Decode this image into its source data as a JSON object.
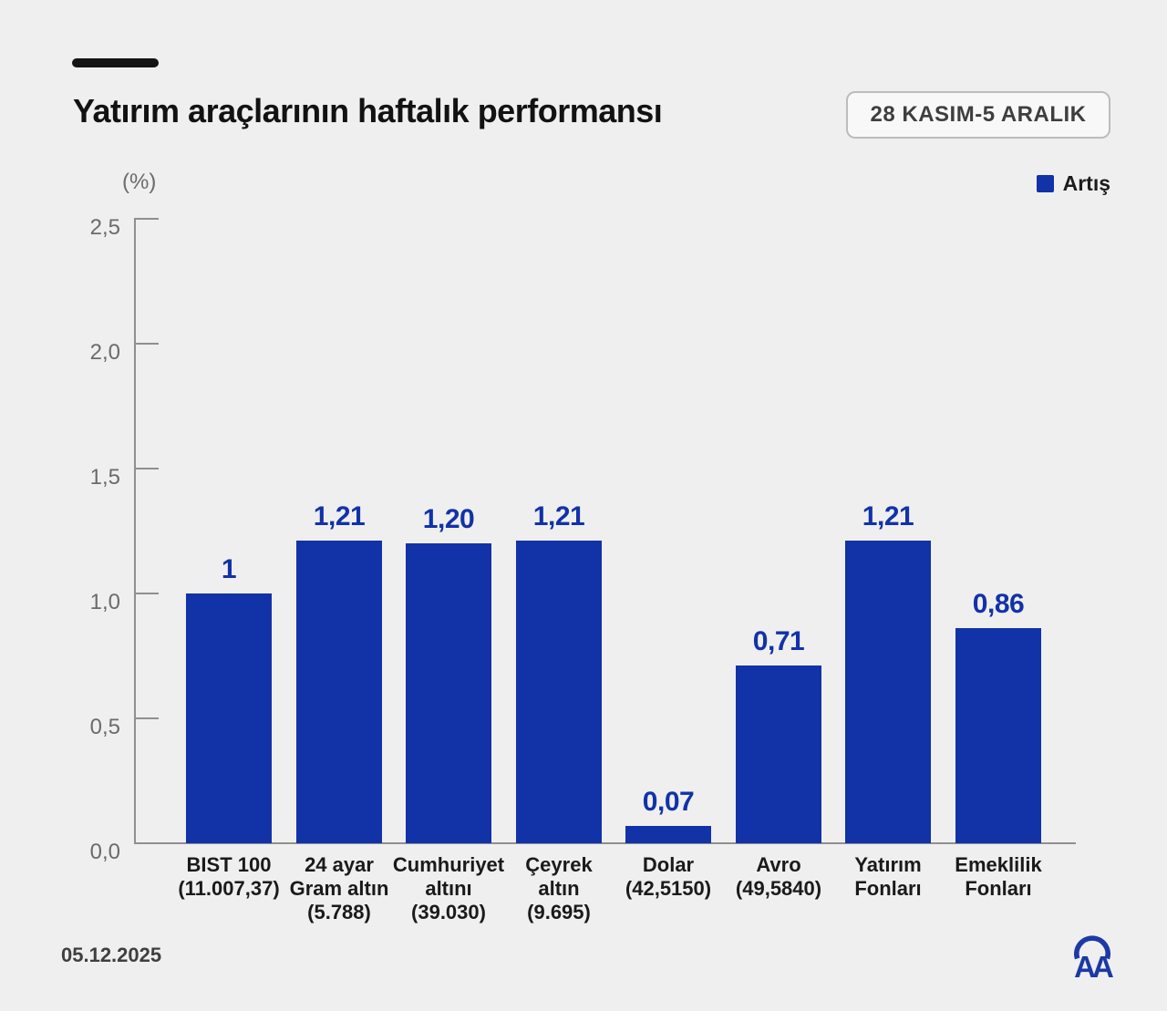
{
  "header": {
    "title": "Yatırım araçlarının haftalık performansı",
    "date_badge": "28 KASIM-5 ARALIK"
  },
  "chart": {
    "unit_label": "(%)",
    "legend_label": "Artış"
  },
  "footer": {
    "date": "05.12.2025",
    "logo_icon": "aa-logo"
  },
  "colors": {
    "accent": "#1232a8",
    "background": "#efefef",
    "axis": "#8f8f8f",
    "ytick_label": "#6b6b6b"
  },
  "chart_data": {
    "type": "bar",
    "title": "Yatırım araçlarının haftalık performansı",
    "period": "28 KASIM-5 ARALIK",
    "unit": "%",
    "categories": [
      "BIST 100 (11.007,37)",
      "24 ayar Gram altın (5.788)",
      "Cumhuriyet altını (39.030)",
      "Çeyrek altın (9.695)",
      "Dolar (42,5150)",
      "Avro (49,5840)",
      "Yatırım Fonları",
      "Emeklilik Fonları"
    ],
    "category_lines": [
      [
        "BIST 100",
        "(11.007,37)"
      ],
      [
        "24 ayar",
        "Gram altın",
        "(5.788)"
      ],
      [
        "Cumhuriyet",
        "altını",
        "(39.030)"
      ],
      [
        "Çeyrek",
        "altın",
        "(9.695)"
      ],
      [
        "Dolar",
        "(42,5150)"
      ],
      [
        "Avro",
        "(49,5840)"
      ],
      [
        "Yatırım",
        "Fonları"
      ],
      [
        "Emeklilik",
        "Fonları"
      ]
    ],
    "values": [
      1,
      1.21,
      1.2,
      1.21,
      0.07,
      0.71,
      1.21,
      0.86
    ],
    "value_labels": [
      "1",
      "1,21",
      "1,20",
      "1,21",
      "0,07",
      "0,71",
      "1,21",
      "0,86"
    ],
    "ylabel": "(%)",
    "ylim": [
      0,
      2.5
    ],
    "ytick_values": [
      2.5,
      2.0,
      1.5,
      1.0,
      0.5,
      0.0
    ],
    "ytick_labels": [
      "2,5",
      "2,0",
      "1,5",
      "1,0",
      "0,5",
      "0,0"
    ],
    "grid": false,
    "bar_color": "#1232a8",
    "legend": [
      {
        "label": "Artış",
        "color": "#1232a8"
      }
    ],
    "legend_position": "top-right"
  }
}
